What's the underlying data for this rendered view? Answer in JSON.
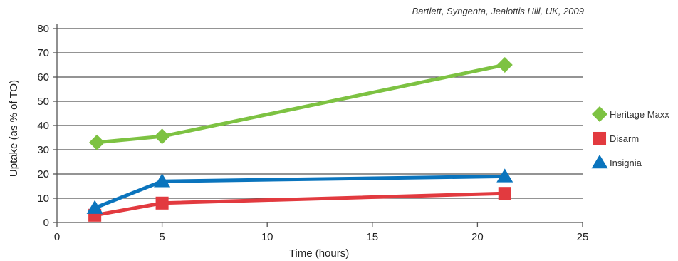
{
  "chart_data": {
    "type": "line",
    "title": "",
    "source": "Bartlett, Syngenta, Jealottis Hill, UK, 2009",
    "xlabel": "Time (hours)",
    "ylabel": "Uptake (as % of TO)",
    "xlim": [
      0,
      25
    ],
    "ylim": [
      0,
      80
    ],
    "xticks": [
      0,
      5,
      10,
      15,
      20,
      25
    ],
    "yticks": [
      0,
      10,
      20,
      30,
      40,
      50,
      60,
      70,
      80
    ],
    "grid": "horizontal",
    "legend_position": "right",
    "series": [
      {
        "name": "Heritage Maxx",
        "color": "#7dc242",
        "marker": "diamond",
        "points": [
          {
            "x": 1.9,
            "y": 33
          },
          {
            "x": 5,
            "y": 35.5
          },
          {
            "x": 21.3,
            "y": 65
          }
        ]
      },
      {
        "name": "Disarm",
        "color": "#e23a3f",
        "marker": "square",
        "points": [
          {
            "x": 1.8,
            "y": 3
          },
          {
            "x": 5,
            "y": 8
          },
          {
            "x": 21.3,
            "y": 12
          }
        ]
      },
      {
        "name": "Insignia",
        "color": "#0a74bd",
        "marker": "triangle",
        "points": [
          {
            "x": 1.8,
            "y": 6
          },
          {
            "x": 5,
            "y": 17
          },
          {
            "x": 21.3,
            "y": 19
          }
        ]
      }
    ]
  }
}
